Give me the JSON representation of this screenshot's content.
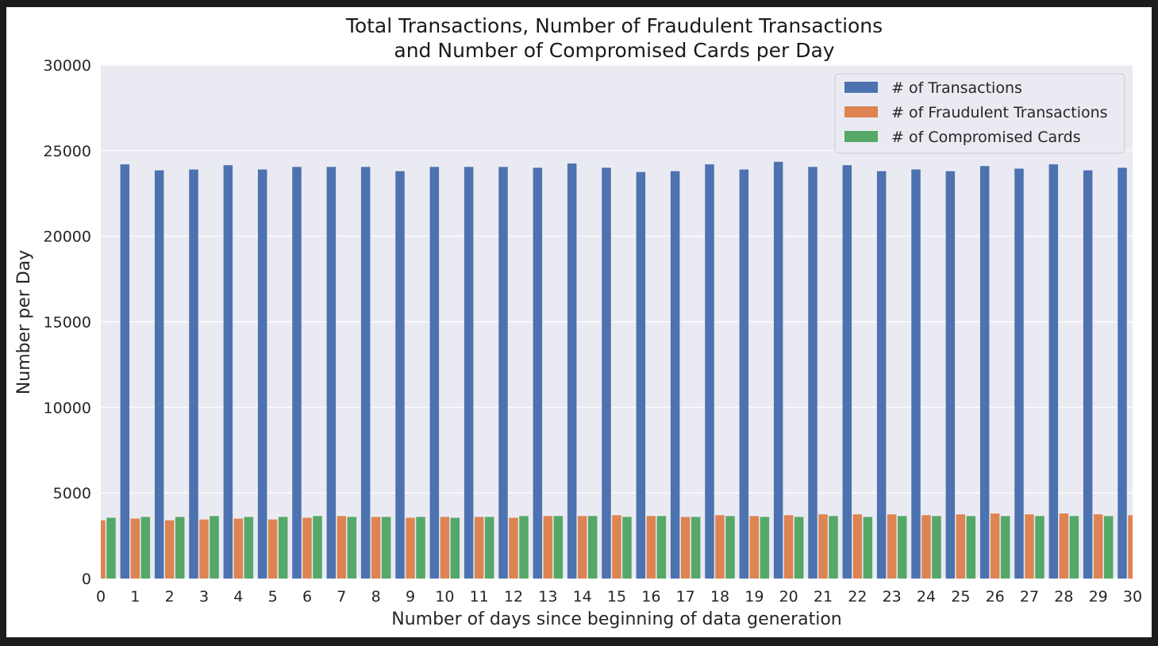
{
  "chart_data": {
    "type": "bar",
    "title_lines": [
      "Total Transactions, Number of Fraudulent Transactions",
      "and Number of Compromised Cards per Day"
    ],
    "xlabel": "Number of days since beginning of data generation",
    "ylabel": "Number per Day",
    "ylim": [
      0,
      30000
    ],
    "yticks": [
      0,
      5000,
      10000,
      15000,
      20000,
      25000,
      30000
    ],
    "grid": true,
    "legend_position": "top-right",
    "categories": [
      "0",
      "1",
      "2",
      "3",
      "4",
      "5",
      "6",
      "7",
      "8",
      "9",
      "10",
      "11",
      "12",
      "13",
      "14",
      "15",
      "16",
      "17",
      "18",
      "19",
      "20",
      "21",
      "22",
      "23",
      "24",
      "25",
      "26",
      "27",
      "28",
      "29",
      "30"
    ],
    "series": [
      {
        "name": "# of Transactions",
        "color": "#4c72b0",
        "values": [
          null,
          24200,
          23850,
          23900,
          24150,
          23900,
          24050,
          24050,
          24050,
          23800,
          24050,
          24050,
          24050,
          24000,
          24250,
          24000,
          23750,
          23800,
          24200,
          23900,
          24350,
          24050,
          24150,
          23800,
          23900,
          23800,
          24100,
          23950,
          24200,
          23850,
          24000
        ]
      },
      {
        "name": "# of Fraudulent Transactions",
        "color": "#dd8452",
        "values": [
          3400,
          3500,
          3400,
          3450,
          3500,
          3450,
          3550,
          3650,
          3600,
          3550,
          3600,
          3600,
          3550,
          3650,
          3650,
          3700,
          3650,
          3600,
          3700,
          3650,
          3700,
          3750,
          3750,
          3750,
          3700,
          3750,
          3800,
          3750,
          3800,
          3750,
          3700
        ]
      },
      {
        "name": "# of Compromised Cards",
        "color": "#55a868",
        "values": [
          3550,
          3600,
          3600,
          3650,
          3600,
          3600,
          3650,
          3600,
          3600,
          3600,
          3550,
          3600,
          3650,
          3650,
          3650,
          3600,
          3650,
          3600,
          3650,
          3600,
          3600,
          3650,
          3600,
          3650,
          3650,
          3650,
          3650,
          3650,
          3650,
          3650,
          null
        ]
      }
    ]
  }
}
